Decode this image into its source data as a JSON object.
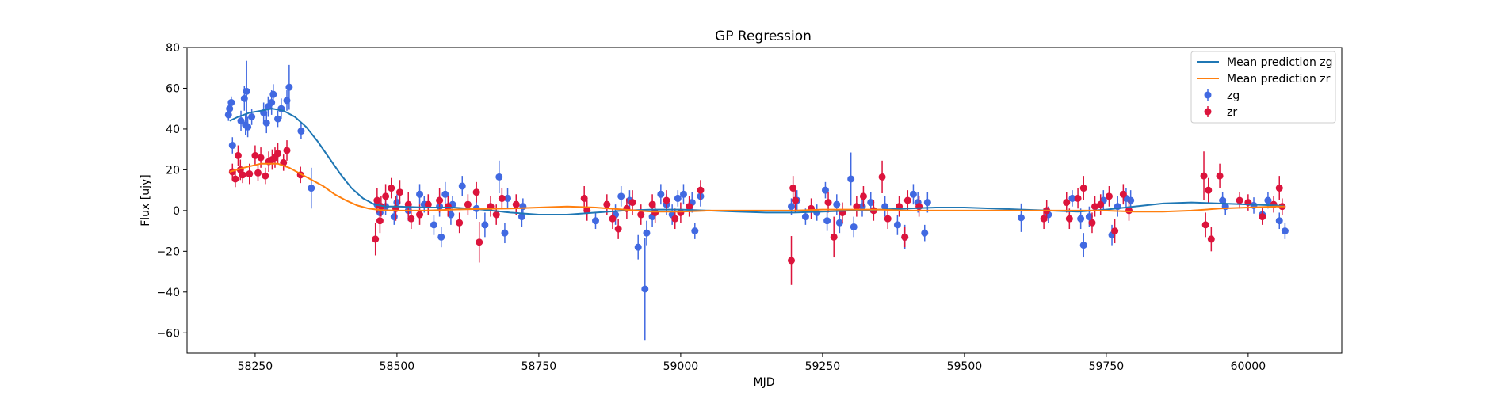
{
  "chart_data": {
    "type": "scatter",
    "title": "GP Regression",
    "xlabel": "MJD",
    "ylabel": "Flux [ujy]",
    "xlim": [
      58130,
      60165
    ],
    "ylim": [
      -70,
      80
    ],
    "xticks": [
      58250,
      58500,
      58750,
      59000,
      59250,
      59500,
      59750,
      60000
    ],
    "yticks": [
      -60,
      -40,
      -20,
      0,
      20,
      40,
      60,
      80
    ],
    "grid": false,
    "legend_position": "top-right",
    "legend": [
      {
        "label": "Mean prediction zg",
        "kind": "line",
        "color": "#1f77b4"
      },
      {
        "label": "Mean prediction zr",
        "kind": "line",
        "color": "#ff7f0e"
      },
      {
        "label": "zg",
        "kind": "errorbar",
        "color": "#4169e1"
      },
      {
        "label": "zr",
        "kind": "errorbar",
        "color": "#dc143c"
      }
    ],
    "lines": [
      {
        "name": "Mean prediction zg",
        "color": "#1f77b4",
        "x": [
          58205,
          58220,
          58240,
          58260,
          58280,
          58300,
          58320,
          58340,
          58360,
          58380,
          58400,
          58420,
          58440,
          58460,
          58480,
          58500,
          58550,
          58600,
          58650,
          58700,
          58750,
          58800,
          58850,
          58900,
          58950,
          59000,
          59050,
          59100,
          59150,
          59200,
          59250,
          59300,
          59350,
          59400,
          59450,
          59500,
          59550,
          59600,
          59650,
          59700,
          59750,
          59800,
          59850,
          59900,
          59950,
          60000,
          60050,
          60065
        ],
        "y": [
          44,
          46,
          48,
          49,
          50,
          49,
          46,
          41,
          34,
          26,
          18,
          11,
          6,
          3,
          2,
          2,
          1.5,
          1.5,
          0.5,
          -1,
          -2,
          -2,
          -1,
          0,
          0.5,
          0.5,
          0,
          -0.5,
          -1,
          -1,
          -0.5,
          0,
          0.5,
          1,
          1.5,
          1.5,
          1,
          0.5,
          0,
          -0.5,
          0.5,
          2,
          3.5,
          4,
          3.5,
          3,
          2.5,
          2
        ]
      },
      {
        "name": "Mean prediction zr",
        "color": "#ff7f0e",
        "x": [
          58205,
          58230,
          58260,
          58290,
          58310,
          58330,
          58350,
          58370,
          58390,
          58410,
          58430,
          58450,
          58470,
          58500,
          58550,
          58600,
          58650,
          58700,
          58750,
          58800,
          58850,
          58900,
          58950,
          59000,
          59050,
          59100,
          59150,
          59200,
          59250,
          59300,
          59350,
          59400,
          59450,
          59500,
          59550,
          59600,
          59650,
          59700,
          59750,
          59800,
          59850,
          59900,
          59950,
          60000,
          60050,
          60065
        ],
        "y": [
          19,
          21,
          23,
          23,
          21,
          18,
          15,
          12,
          8,
          5,
          2.5,
          1,
          0.3,
          0,
          0,
          0.5,
          0.8,
          1,
          1.5,
          2,
          1.5,
          0.5,
          -0.5,
          -0.5,
          0,
          0,
          0,
          0,
          0.5,
          0.5,
          0.5,
          0,
          0,
          0,
          0,
          0,
          0,
          0,
          0,
          -0.5,
          -0.5,
          0,
          1,
          1.5,
          2,
          2
        ]
      }
    ],
    "series": [
      {
        "name": "zg",
        "color": "#4169e1",
        "points": [
          [
            58203,
            47,
            3
          ],
          [
            58205,
            50,
            4
          ],
          [
            58208,
            53,
            3
          ],
          [
            58210,
            32,
            4
          ],
          [
            58225,
            44,
            5
          ],
          [
            58231,
            55,
            6
          ],
          [
            58233,
            42,
            5
          ],
          [
            58235,
            58.5,
            15
          ],
          [
            58237,
            41,
            5
          ],
          [
            58244,
            46,
            4
          ],
          [
            58265,
            48,
            5
          ],
          [
            58270,
            43,
            5
          ],
          [
            58273,
            51,
            5
          ],
          [
            58279,
            53,
            6
          ],
          [
            58282,
            57,
            5
          ],
          [
            58290,
            45,
            4
          ],
          [
            58296,
            50,
            5
          ],
          [
            58306,
            54,
            5
          ],
          [
            58310,
            60.5,
            11
          ],
          [
            58331,
            39,
            4
          ],
          [
            58349,
            11,
            10
          ],
          [
            58465,
            3,
            4
          ],
          [
            58470,
            -1,
            5
          ],
          [
            58480,
            2,
            4
          ],
          [
            58495,
            -3,
            4
          ],
          [
            58500,
            4,
            4
          ],
          [
            58520,
            0,
            5
          ],
          [
            58540,
            8,
            5
          ],
          [
            58548,
            3,
            4
          ],
          [
            58565,
            -7,
            5
          ],
          [
            58575,
            2,
            5
          ],
          [
            58578,
            -13,
            5
          ],
          [
            58585,
            8,
            6
          ],
          [
            58595,
            -2,
            5
          ],
          [
            58598,
            3,
            4
          ],
          [
            58615,
            12,
            5
          ],
          [
            58640,
            1,
            5
          ],
          [
            58655,
            -7,
            6
          ],
          [
            58680,
            16.5,
            8
          ],
          [
            58690,
            -11,
            5
          ],
          [
            58695,
            6,
            5
          ],
          [
            58720,
            -3,
            5
          ],
          [
            58722,
            2,
            4
          ],
          [
            58850,
            -5,
            4
          ],
          [
            58885,
            -2,
            5
          ],
          [
            58895,
            7,
            5
          ],
          [
            58910,
            5,
            5
          ],
          [
            58925,
            -18,
            6
          ],
          [
            58937,
            -38.5,
            25
          ],
          [
            58940,
            -11,
            6
          ],
          [
            58950,
            -3,
            5
          ],
          [
            58965,
            8,
            5
          ],
          [
            58975,
            3,
            5
          ],
          [
            58985,
            -2,
            5
          ],
          [
            58995,
            6,
            4
          ],
          [
            59005,
            8,
            5
          ],
          [
            59020,
            4,
            5
          ],
          [
            59025,
            -10,
            4
          ],
          [
            59035,
            7,
            5
          ],
          [
            59195,
            2,
            4
          ],
          [
            59205,
            5,
            5
          ],
          [
            59220,
            -3,
            4
          ],
          [
            59240,
            -1,
            4
          ],
          [
            59255,
            10,
            4
          ],
          [
            59258,
            -5,
            5
          ],
          [
            59275,
            3,
            5
          ],
          [
            59280,
            -6,
            5
          ],
          [
            59300,
            15.5,
            13
          ],
          [
            59305,
            -8,
            5
          ],
          [
            59320,
            2,
            5
          ],
          [
            59335,
            4,
            5
          ],
          [
            59360,
            2,
            5
          ],
          [
            59382,
            -7,
            5
          ],
          [
            59395,
            -13,
            6
          ],
          [
            59410,
            8,
            5
          ],
          [
            59418,
            4,
            5
          ],
          [
            59430,
            -11,
            4
          ],
          [
            59435,
            4,
            5
          ],
          [
            59600,
            -3.5,
            7
          ],
          [
            59648,
            -2,
            4
          ],
          [
            59690,
            6,
            4
          ],
          [
            59705,
            -4,
            5
          ],
          [
            59710,
            -17,
            6
          ],
          [
            59720,
            -3,
            5
          ],
          [
            59745,
            5,
            5
          ],
          [
            59760,
            -12,
            5
          ],
          [
            59770,
            2,
            5
          ],
          [
            59785,
            6,
            5
          ],
          [
            59793,
            5,
            5
          ],
          [
            59955,
            5,
            4
          ],
          [
            59960,
            2,
            4
          ],
          [
            60010,
            2.5,
            4
          ],
          [
            60025,
            -2,
            4
          ],
          [
            60035,
            5,
            4
          ],
          [
            60055,
            -5,
            4
          ],
          [
            60065,
            -10,
            4
          ]
        ]
      },
      {
        "name": "zr",
        "color": "#dc143c",
        "points": [
          [
            58210,
            19,
            4
          ],
          [
            58215,
            15.5,
            4
          ],
          [
            58220,
            27,
            5
          ],
          [
            58224,
            20,
            5
          ],
          [
            58228,
            17.5,
            4
          ],
          [
            58240,
            18,
            5
          ],
          [
            58250,
            27,
            5
          ],
          [
            58255,
            18.5,
            4
          ],
          [
            58260,
            26,
            5
          ],
          [
            58268,
            17,
            4
          ],
          [
            58274,
            24,
            5
          ],
          [
            58280,
            25,
            5
          ],
          [
            58285,
            26,
            5
          ],
          [
            58290,
            28,
            5
          ],
          [
            58300,
            23.5,
            4
          ],
          [
            58306,
            29.5,
            5
          ],
          [
            58330,
            17.5,
            4
          ],
          [
            58462,
            -14,
            8
          ],
          [
            58465,
            5,
            6
          ],
          [
            58470,
            -5,
            6
          ],
          [
            58472,
            2,
            5
          ],
          [
            58480,
            7,
            6
          ],
          [
            58490,
            11,
            5
          ],
          [
            58498,
            1,
            6
          ],
          [
            58505,
            9,
            6
          ],
          [
            58520,
            3,
            6
          ],
          [
            58525,
            -4,
            5
          ],
          [
            58540,
            -2,
            5
          ],
          [
            58555,
            3,
            5
          ],
          [
            58575,
            5,
            6
          ],
          [
            58590,
            2,
            5
          ],
          [
            58610,
            -6,
            5
          ],
          [
            58625,
            3,
            5
          ],
          [
            58640,
            9,
            5
          ],
          [
            58645,
            -15.5,
            10
          ],
          [
            58665,
            2,
            5
          ],
          [
            58675,
            -2,
            5
          ],
          [
            58685,
            6,
            5
          ],
          [
            58710,
            3,
            5
          ],
          [
            58830,
            6,
            6
          ],
          [
            58835,
            0,
            5
          ],
          [
            58870,
            3,
            5
          ],
          [
            58880,
            -4,
            5
          ],
          [
            58890,
            -9,
            5
          ],
          [
            58905,
            1,
            5
          ],
          [
            58915,
            4,
            6
          ],
          [
            58930,
            -2,
            5
          ],
          [
            58950,
            3,
            5
          ],
          [
            58955,
            -1,
            5
          ],
          [
            58975,
            5,
            5
          ],
          [
            58990,
            -4,
            5
          ],
          [
            59000,
            -1,
            5
          ],
          [
            59015,
            2,
            5
          ],
          [
            59035,
            10,
            5
          ],
          [
            59195,
            -24.5,
            12
          ],
          [
            59198,
            11,
            6
          ],
          [
            59202,
            5,
            6
          ],
          [
            59230,
            1,
            5
          ],
          [
            59260,
            4,
            5
          ],
          [
            59270,
            -13,
            10
          ],
          [
            59285,
            -1,
            5
          ],
          [
            59310,
            2,
            5
          ],
          [
            59322,
            7,
            5
          ],
          [
            59340,
            0,
            5
          ],
          [
            59355,
            16.5,
            8
          ],
          [
            59365,
            -4,
            5
          ],
          [
            59385,
            2,
            5
          ],
          [
            59395,
            -13,
            5
          ],
          [
            59400,
            5,
            5
          ],
          [
            59420,
            2,
            5
          ],
          [
            59640,
            -4,
            5
          ],
          [
            59645,
            0,
            5
          ],
          [
            59680,
            4,
            5
          ],
          [
            59685,
            -4,
            5
          ],
          [
            59700,
            6,
            5
          ],
          [
            59710,
            11,
            6
          ],
          [
            59725,
            -6,
            5
          ],
          [
            59730,
            2,
            5
          ],
          [
            59740,
            3,
            5
          ],
          [
            59755,
            7,
            5
          ],
          [
            59765,
            -10,
            6
          ],
          [
            59780,
            8,
            5
          ],
          [
            59790,
            0,
            5
          ],
          [
            59922,
            17,
            12
          ],
          [
            59925,
            -7,
            6
          ],
          [
            59930,
            10,
            6
          ],
          [
            59935,
            -14,
            6
          ],
          [
            59950,
            17,
            6
          ],
          [
            59985,
            5,
            4
          ],
          [
            60000,
            4,
            4
          ],
          [
            60025,
            -3,
            4
          ],
          [
            60045,
            3,
            4
          ],
          [
            60055,
            11,
            6
          ],
          [
            60060,
            2,
            4
          ]
        ]
      }
    ]
  }
}
